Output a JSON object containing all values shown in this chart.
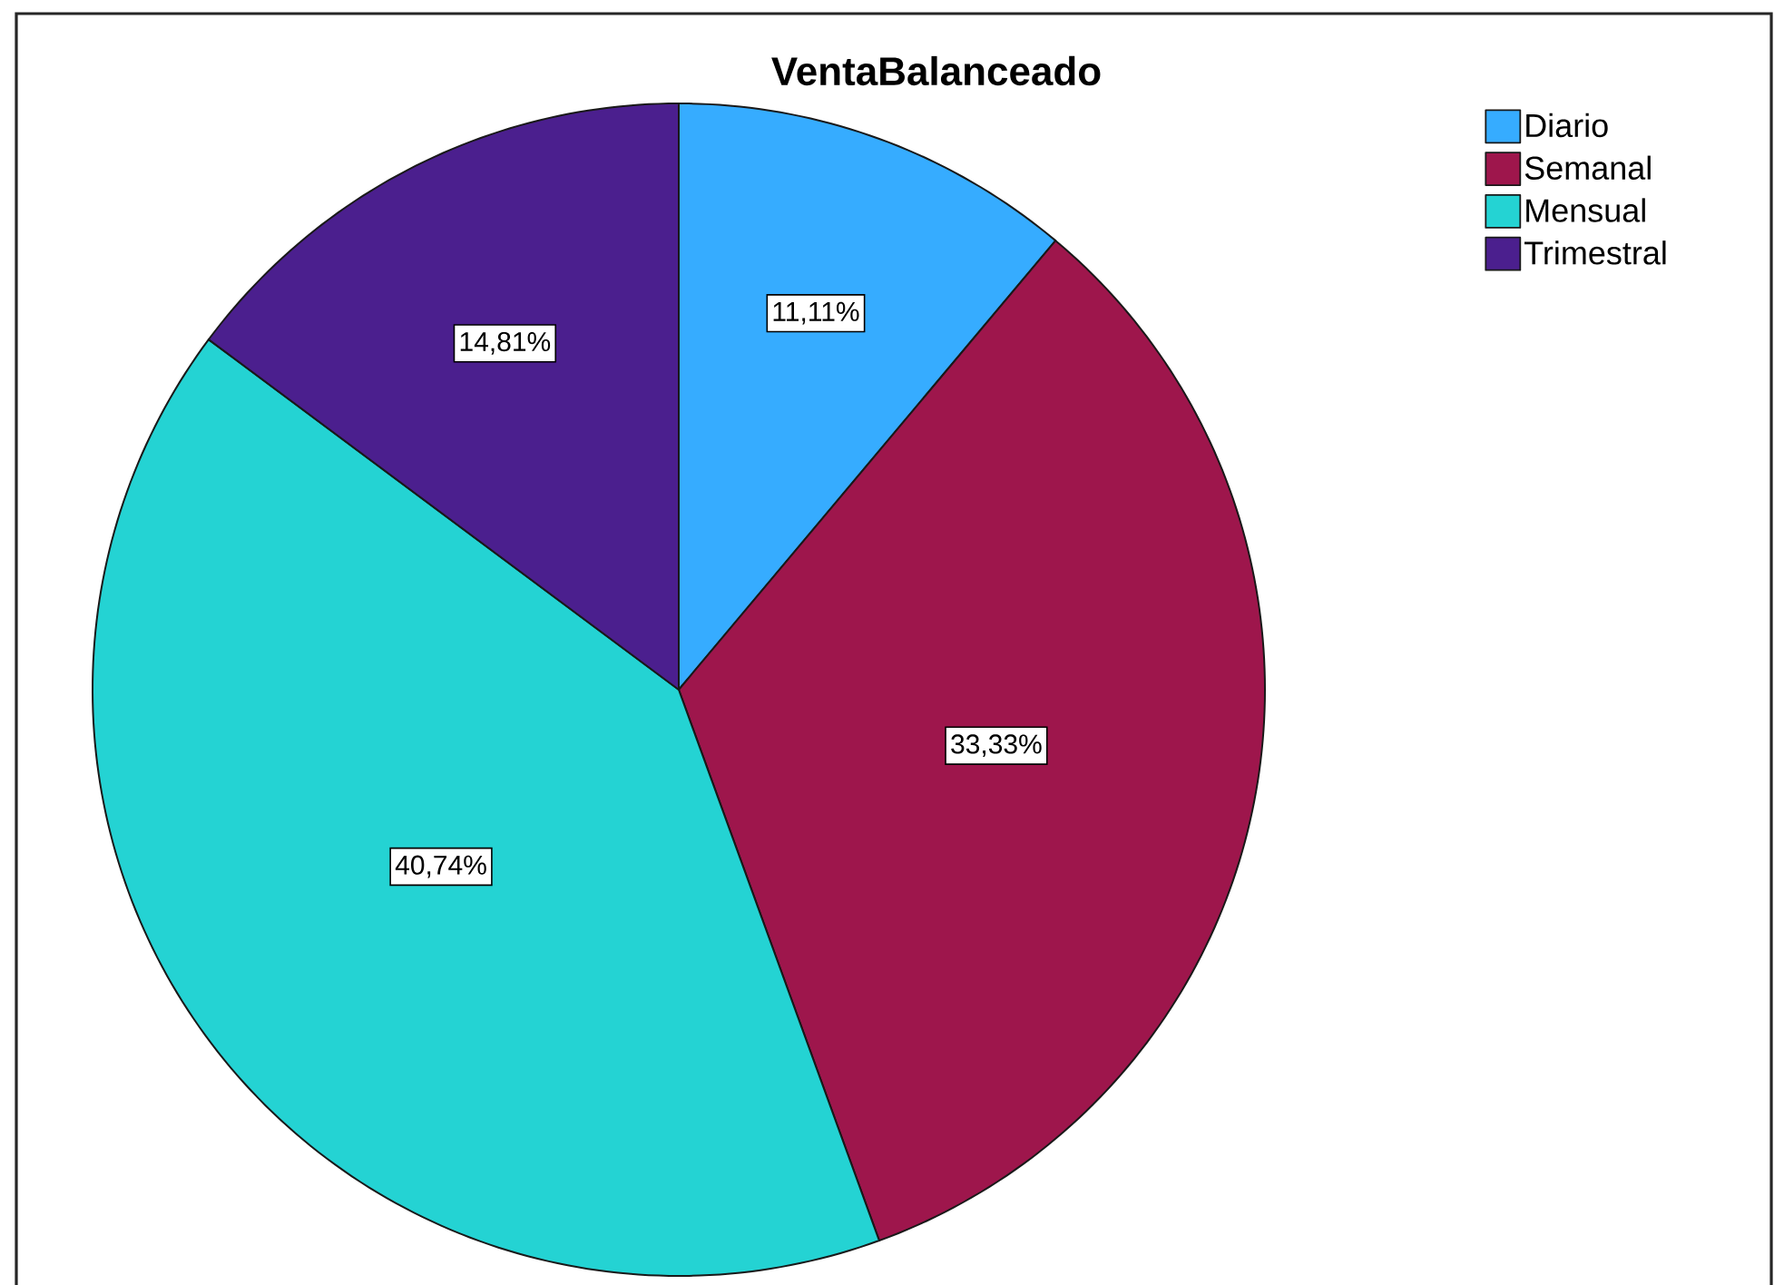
{
  "chart_data": {
    "type": "pie",
    "title": "VentaBalanceado",
    "categories": [
      "Diario",
      "Semanal",
      "Mensual",
      "Trimestral"
    ],
    "values": [
      11.11,
      33.33,
      40.74,
      14.81
    ],
    "colors": [
      "#36acff",
      "#9e164c",
      "#24d3d3",
      "#4b1f8e"
    ],
    "value_labels": [
      "11,11%",
      "33,33%",
      "40,74%",
      "14,81%"
    ],
    "legend": "top right"
  }
}
